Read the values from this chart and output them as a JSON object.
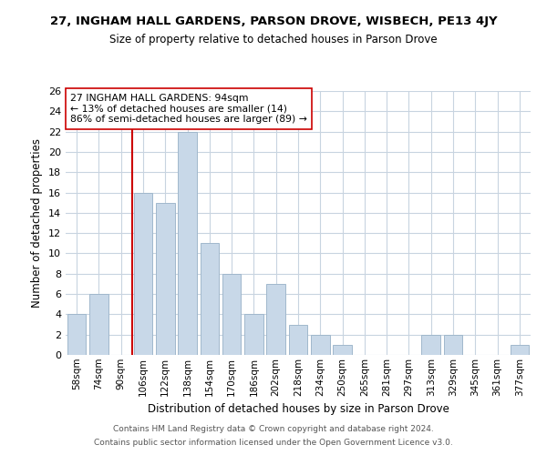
{
  "title": "27, INGHAM HALL GARDENS, PARSON DROVE, WISBECH, PE13 4JY",
  "subtitle": "Size of property relative to detached houses in Parson Drove",
  "xlabel": "Distribution of detached houses by size in Parson Drove",
  "ylabel": "Number of detached properties",
  "bar_labels": [
    "58sqm",
    "74sqm",
    "90sqm",
    "106sqm",
    "122sqm",
    "138sqm",
    "154sqm",
    "170sqm",
    "186sqm",
    "202sqm",
    "218sqm",
    "234sqm",
    "250sqm",
    "265sqm",
    "281sqm",
    "297sqm",
    "313sqm",
    "329sqm",
    "345sqm",
    "361sqm",
    "377sqm"
  ],
  "bar_values": [
    4,
    6,
    0,
    16,
    15,
    22,
    11,
    8,
    4,
    7,
    3,
    2,
    1,
    0,
    0,
    0,
    2,
    2,
    0,
    0,
    1
  ],
  "bar_color": "#c8d8e8",
  "bar_edge_color": "#a0b8cc",
  "vline_x_index": 2,
  "vline_color": "#cc0000",
  "ylim": [
    0,
    26
  ],
  "yticks": [
    0,
    2,
    4,
    6,
    8,
    10,
    12,
    14,
    16,
    18,
    20,
    22,
    24,
    26
  ],
  "annotation_text": "27 INGHAM HALL GARDENS: 94sqm\n← 13% of detached houses are smaller (14)\n86% of semi-detached houses are larger (89) →",
  "annotation_box_color": "#ffffff",
  "annotation_box_edge": "#cc0000",
  "footer_line1": "Contains HM Land Registry data © Crown copyright and database right 2024.",
  "footer_line2": "Contains public sector information licensed under the Open Government Licence v3.0.",
  "bg_color": "#ffffff",
  "grid_color": "#c8d4e0"
}
